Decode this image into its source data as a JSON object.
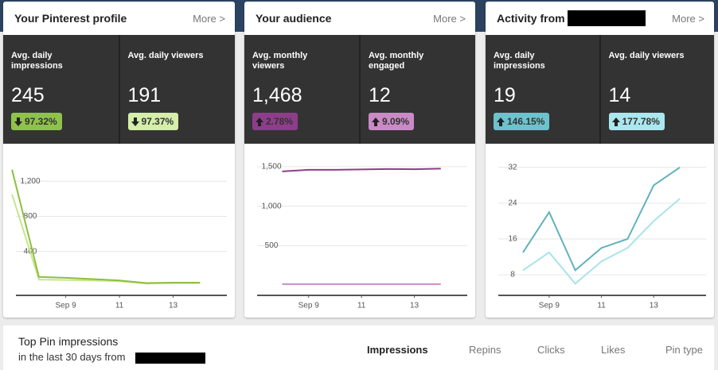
{
  "cards": [
    {
      "title": "Your Pinterest profile",
      "more": "More >",
      "stats": [
        {
          "label": "Avg. daily impressions",
          "value": "245",
          "change": "97.32%",
          "trend": "down",
          "color": "#8fc24a"
        },
        {
          "label": "Avg. daily viewers",
          "value": "191",
          "change": "97.37%",
          "trend": "down",
          "color": "#d5eeaa"
        }
      ]
    },
    {
      "title": "Your audience",
      "more": "More >",
      "stats": [
        {
          "label": "Avg. monthly viewers",
          "value": "1,468",
          "change": "2.78%",
          "trend": "up",
          "color": "#8e3d8b"
        },
        {
          "label": "Avg. monthly engaged",
          "value": "12",
          "change": "9.09%",
          "trend": "up",
          "color": "#c98ac6"
        }
      ]
    },
    {
      "title": "Activity from",
      "more": "More >",
      "stats": [
        {
          "label": "Avg. daily impressions",
          "value": "19",
          "change": "146.15%",
          "trend": "up",
          "color": "#6cc3cd"
        },
        {
          "label": "Avg. daily viewers",
          "value": "14",
          "change": "177.78%",
          "trend": "up",
          "color": "#aae7ef"
        }
      ]
    }
  ],
  "chart_data": [
    {
      "type": "line",
      "x": [
        7,
        8,
        9,
        10,
        11,
        12,
        13,
        14
      ],
      "xlim": [
        6.7,
        15
      ],
      "xticks": [
        {
          "value": 9,
          "label": "Sep 9"
        },
        11,
        13
      ],
      "ylim": [
        -100,
        1500
      ],
      "yticks": [
        400,
        800,
        {
          "value": 1200,
          "label": "1,200"
        }
      ],
      "grid": true,
      "series": [
        {
          "color": "#8dbf3e",
          "values": [
            1330,
            110,
            100,
            85,
            70,
            40,
            45,
            45
          ]
        },
        {
          "color": "#c8e590",
          "values": [
            1050,
            80,
            75,
            70,
            60,
            35,
            40,
            40
          ]
        }
      ]
    },
    {
      "type": "line",
      "x": [
        8,
        9,
        10,
        11,
        12,
        13,
        14
      ],
      "xlim": [
        6.6,
        15
      ],
      "xticks": [
        {
          "value": 9,
          "label": "Sep 9"
        },
        11,
        13
      ],
      "ylim": [
        -130,
        1650
      ],
      "yticks": [
        500,
        {
          "value": 1000,
          "label": "1,000"
        },
        {
          "value": 1500,
          "label": "1,500"
        }
      ],
      "grid": true,
      "series": [
        {
          "color": "#8a3f86",
          "values": [
            1440,
            1460,
            1460,
            1465,
            1470,
            1468,
            1475
          ]
        },
        {
          "color": "#c98cc6",
          "values": [
            12,
            12,
            12,
            12,
            12,
            12,
            12
          ]
        }
      ]
    },
    {
      "type": "line",
      "x": [
        8,
        9,
        10,
        11,
        12,
        13,
        14
      ],
      "xlim": [
        6.6,
        15
      ],
      "xticks": [
        {
          "value": 9,
          "label": "Sep 9"
        },
        11,
        13
      ],
      "ylim": [
        3.4,
        34.8
      ],
      "yticks": [
        8,
        16,
        24,
        32
      ],
      "grid": true,
      "series": [
        {
          "color": "#5fb3bc",
          "values": [
            13,
            22,
            9,
            14,
            16,
            28,
            32
          ]
        },
        {
          "color": "#a8e4ec",
          "values": [
            9,
            13,
            6,
            11,
            14,
            20,
            25
          ]
        }
      ]
    }
  ],
  "footer": {
    "title": "Top Pin impressions",
    "subtitle": "in the last 30 days from",
    "tabs": [
      "Impressions",
      "Repins",
      "Clicks",
      "Likes",
      "Pin type"
    ]
  }
}
